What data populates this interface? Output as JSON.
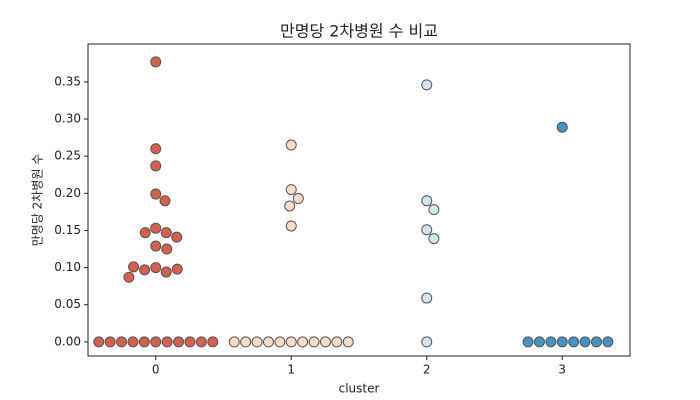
{
  "chart_data": {
    "type": "swarm",
    "title": "만명당 2차병원 수 비교",
    "x_label": "cluster",
    "y_label": "만명당 2차병원 수",
    "categories": [
      "0",
      "1",
      "2",
      "3"
    ],
    "colors": [
      "#d6604d",
      "#fddbc7",
      "#d1e5f0",
      "#4393c3"
    ],
    "values": [
      [
        0.377,
        0.26,
        0.237,
        0.199,
        0.19,
        0.153,
        0.147,
        0.147,
        0.141,
        0.129,
        0.125,
        0.1,
        0.094,
        0.097,
        0.098,
        0.101,
        0.087,
        0,
        0,
        0,
        0,
        0,
        0,
        0,
        0,
        0,
        0,
        0
      ],
      [
        0.265,
        0.205,
        0.193,
        0.183,
        0.156,
        0,
        0,
        0,
        0,
        0,
        0,
        0,
        0,
        0,
        0,
        0
      ],
      [
        0.346,
        0.19,
        0.178,
        0.151,
        0.139,
        0.059,
        0
      ],
      [
        0.289,
        0,
        0,
        0,
        0,
        0,
        0,
        0,
        0
      ]
    ],
    "ylim": [
      -0.019,
      0.401
    ],
    "yticks": [
      {
        "value": 0,
        "label": "0.00"
      },
      {
        "value": 0.05,
        "label": "0.05"
      },
      {
        "value": 0.1,
        "label": "0.10"
      },
      {
        "value": 0.15,
        "label": "0.15"
      },
      {
        "value": 0.2,
        "label": "0.20"
      },
      {
        "value": 0.25,
        "label": "0.25"
      },
      {
        "value": 0.3,
        "label": "0.30"
      },
      {
        "value": 0.35,
        "label": "0.35"
      }
    ]
  }
}
